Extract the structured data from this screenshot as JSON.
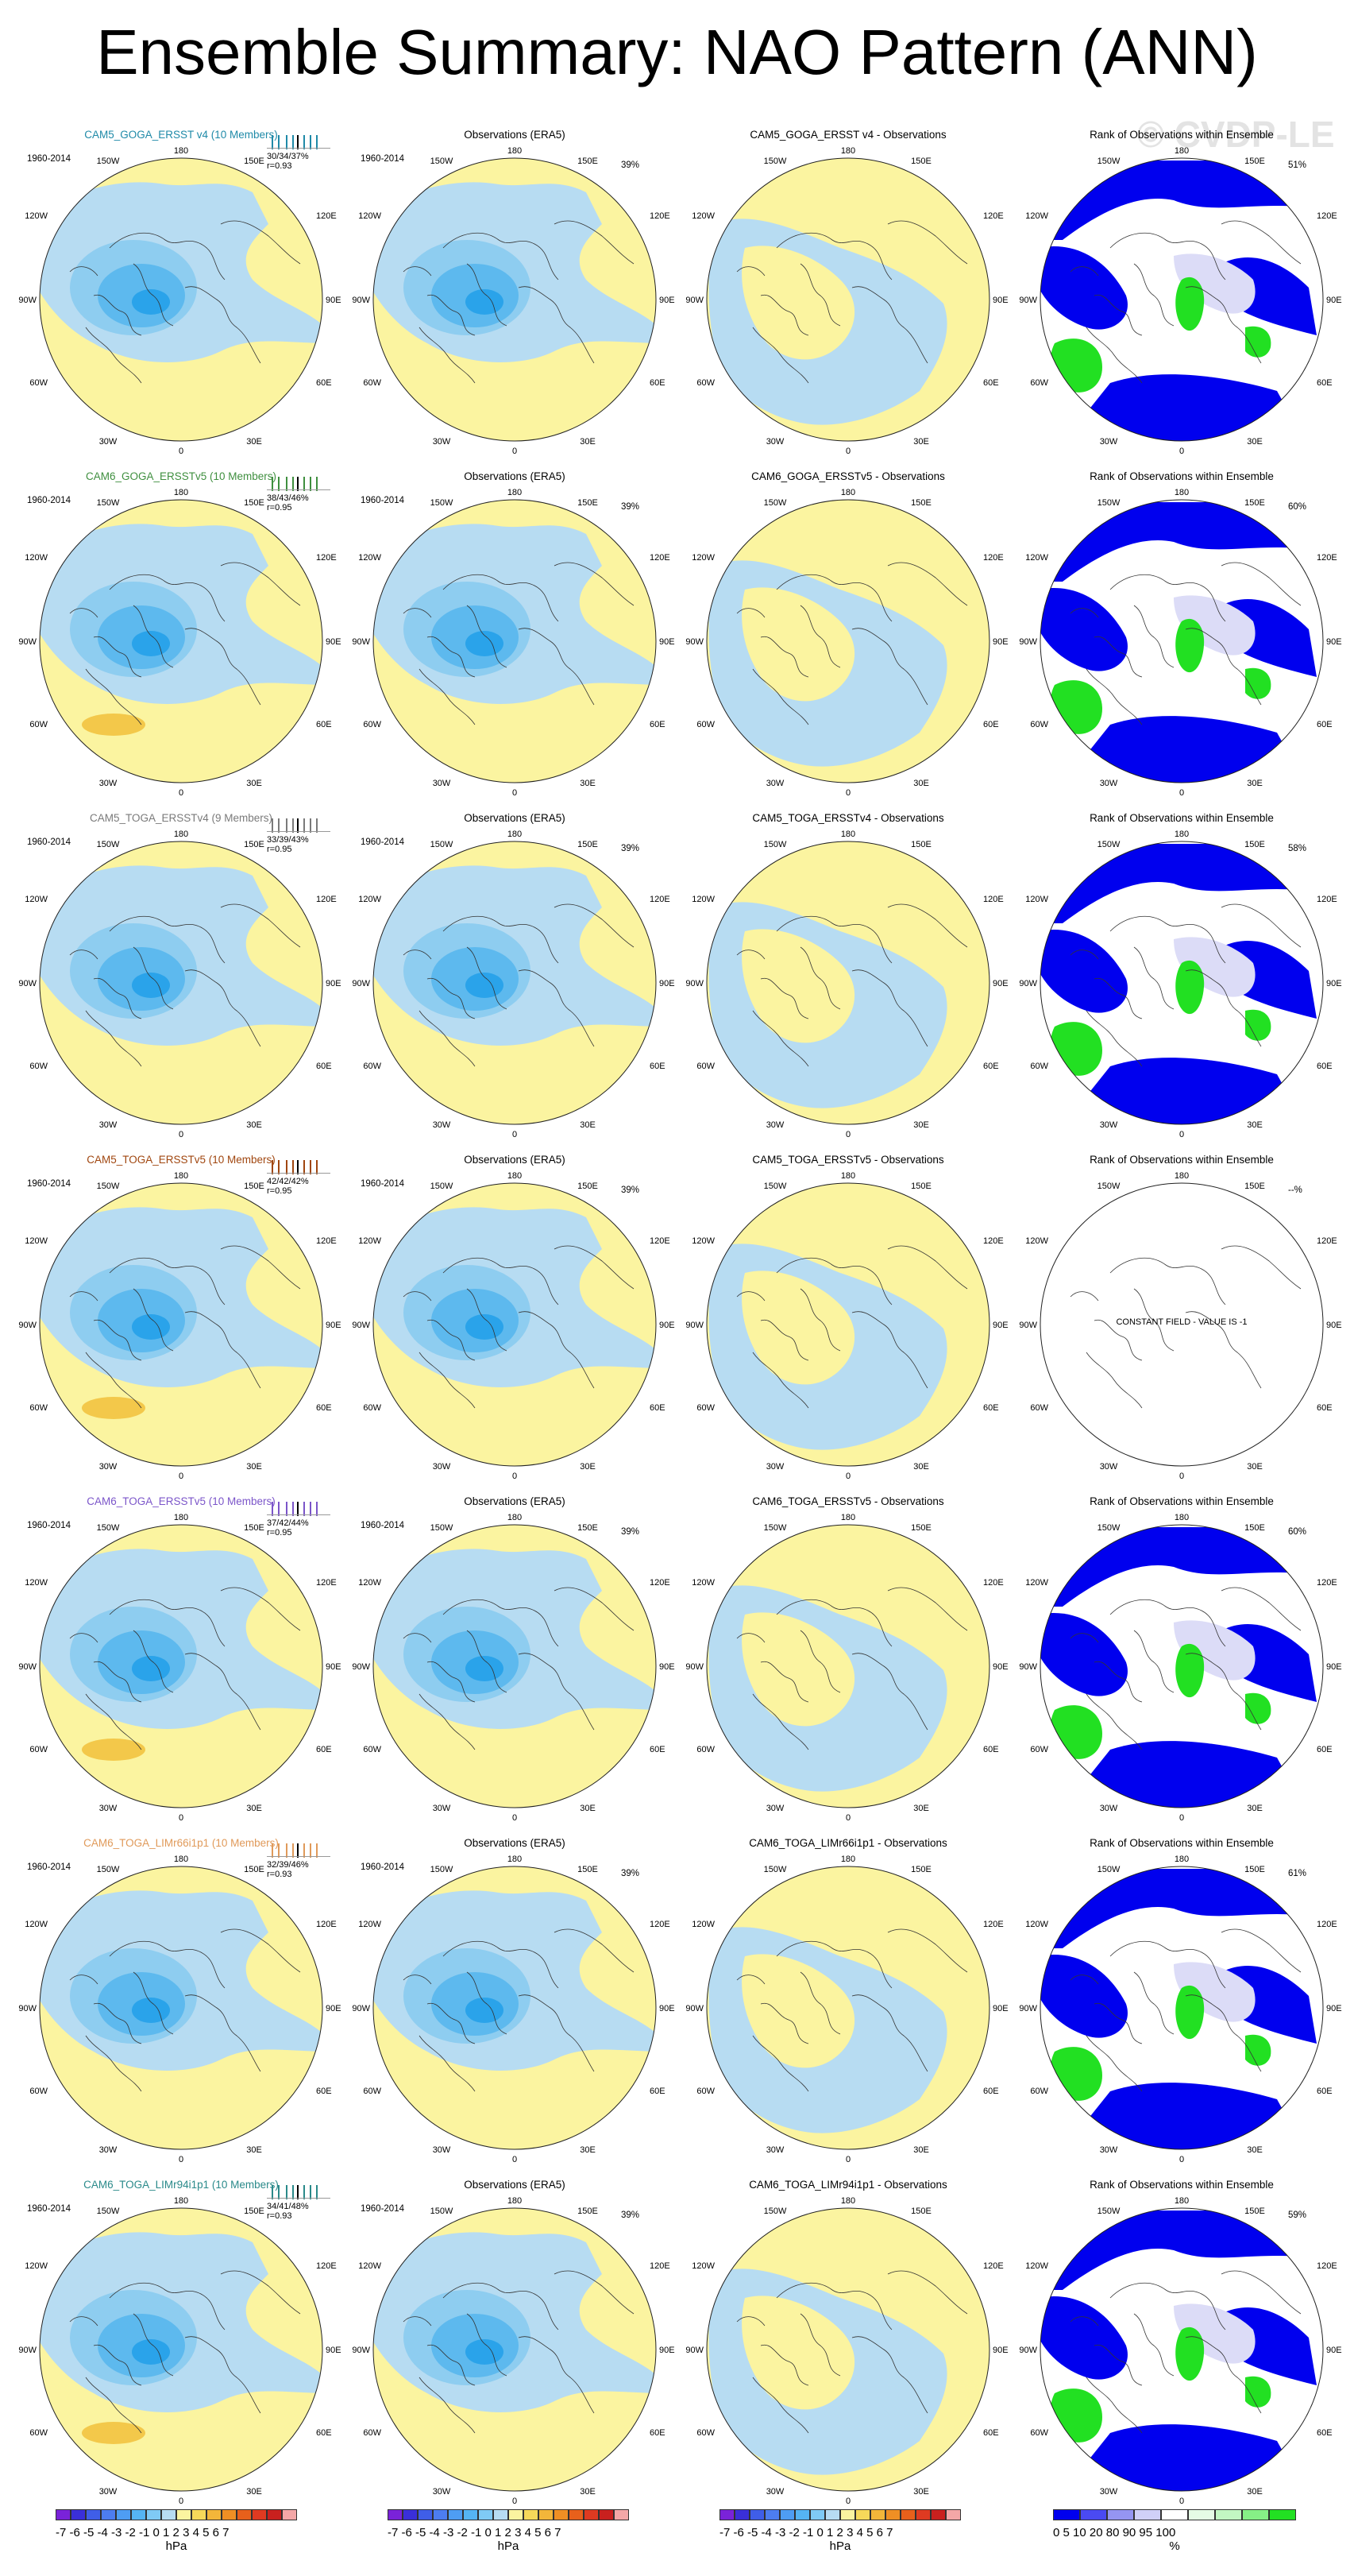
{
  "title": "Ensemble Summary: NAO Pattern (ANN)",
  "watermark": "© CVDP-LE",
  "colors": {
    "positive_fill": "#fbf4a0",
    "negative_fill": "#b7dcf2",
    "neg2": "#8ecdf0",
    "neg3": "#5db9ee",
    "neg4": "#2aa3ea",
    "pos2": "#f3c84a",
    "rank_blue": "#0000ee",
    "rank_lavender": "#dcdcf7",
    "rank_green": "#22e022",
    "rank_lightgreen": "#cdfbcd"
  },
  "lon_labels": {
    "top": "180",
    "top_left": "150W",
    "top_right": "150E",
    "upper_left": "120W",
    "upper_right": "120E",
    "left": "90W",
    "right": "90E",
    "lower_left": "60W",
    "lower_right": "60E",
    "bot_left": "30W",
    "bot_right": "30E",
    "bottom": "0"
  },
  "rows": [
    {
      "model": "CAM5_GOGA_ERSST v4 (10 Members)",
      "model_color": "#1f8aa8",
      "years": "1960-2014",
      "stat": "30/34/37%",
      "r": "r=0.93",
      "obs_title": "Observations (ERA5)",
      "obs_years": "1960-2014",
      "obs_pct": "39%",
      "diff_title": "CAM5_GOGA_ERSST v4 - Observations",
      "rank_title": "Rank of Observations within Ensemble",
      "rank_pct": "51%"
    },
    {
      "model": "CAM6_GOGA_ERSSTv5 (10 Members)",
      "model_color": "#3f8f3f",
      "years": "1960-2014",
      "stat": "38/43/46%",
      "r": "r=0.95",
      "obs_title": "Observations (ERA5)",
      "obs_years": "1960-2014",
      "obs_pct": "39%",
      "diff_title": "CAM6_GOGA_ERSSTv5 - Observations",
      "rank_title": "Rank of Observations within Ensemble",
      "rank_pct": "60%"
    },
    {
      "model": "CAM5_TOGA_ERSSTv4 (9 Members)",
      "model_color": "#7a7a7a",
      "years": "1960-2014",
      "stat": "33/39/43%",
      "r": "r=0.95",
      "obs_title": "Observations (ERA5)",
      "obs_years": "1960-2014",
      "obs_pct": "39%",
      "diff_title": "CAM5_TOGA_ERSSTv4 - Observations",
      "rank_title": "Rank of Observations within Ensemble",
      "rank_pct": "58%"
    },
    {
      "model": "CAM5_TOGA_ERSSTv5 (10 Members)",
      "model_color": "#a0460f",
      "years": "1960-2014",
      "stat": "42/42/42%",
      "r": "r=0.95",
      "obs_title": "Observations (ERA5)",
      "obs_years": "1960-2014",
      "obs_pct": "39%",
      "diff_title": "CAM5_TOGA_ERSSTv5 - Observations",
      "rank_title": "Rank of Observations within Ensemble",
      "rank_pct": "--%",
      "rank_note": "CONSTANT FIELD - VALUE IS -1"
    },
    {
      "model": "CAM6_TOGA_ERSSTv5 (10 Members)",
      "model_color": "#7b55c9",
      "years": "1960-2014",
      "stat": "37/42/44%",
      "r": "r=0.95",
      "obs_title": "Observations (ERA5)",
      "obs_years": "1960-2014",
      "obs_pct": "39%",
      "diff_title": "CAM6_TOGA_ERSSTv5 - Observations",
      "rank_title": "Rank of Observations within Ensemble",
      "rank_pct": "60%"
    },
    {
      "model": "CAM6_TOGA_LIMr66i1p1 (10 Members)",
      "model_color": "#e09a5a",
      "years": "1960-2014",
      "stat": "32/39/46%",
      "r": "r=0.93",
      "obs_title": "Observations (ERA5)",
      "obs_years": "1960-2014",
      "obs_pct": "39%",
      "diff_title": "CAM6_TOGA_LIMr66i1p1 - Observations",
      "rank_title": "Rank of Observations within Ensemble",
      "rank_pct": "61%"
    },
    {
      "model": "CAM6_TOGA_LIMr94i1p1 (10 Members)",
      "model_color": "#2a8a8a",
      "years": "1960-2014",
      "stat": "34/41/48%",
      "r": "r=0.93",
      "obs_title": "Observations (ERA5)",
      "obs_years": "1960-2014",
      "obs_pct": "39%",
      "diff_title": "CAM6_TOGA_LIMr94i1p1 - Observations",
      "rank_title": "Rank of Observations within Ensemble",
      "rank_pct": "59%"
    }
  ],
  "colorbar_hpa": {
    "ticks": "-7 -6 -5 -4 -3 -2 -1 0 1 2 3 4 5 6 7",
    "unit": "hPa",
    "colors": [
      "#7a22d9",
      "#3a2fd9",
      "#3f5ee8",
      "#4d7df0",
      "#4e9df3",
      "#55b4f3",
      "#7fcaf5",
      "#b7dcf2",
      "#fbf4a0",
      "#f6d85a",
      "#f3b63a",
      "#ef8f24",
      "#e8601b",
      "#df3a21",
      "#c9201e",
      "#f4a7a7"
    ]
  },
  "colorbar_rank": {
    "ticks": "0   5  10      20     80      90  95 100",
    "unit": "%",
    "colors": [
      "#0000ee",
      "#4a4af2",
      "#9595f2",
      "#d0d0f8",
      "#ffffff",
      "#e5fbe5",
      "#c2f7c2",
      "#86f086",
      "#22e022"
    ]
  }
}
